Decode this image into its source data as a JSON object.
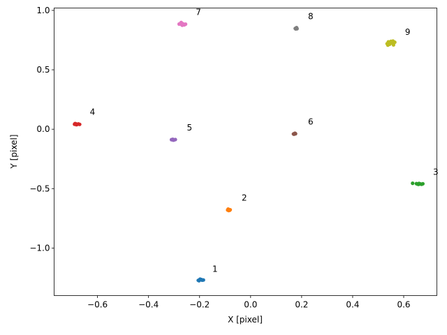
{
  "chart_data": {
    "type": "scatter",
    "title": "",
    "xlabel": "X [pixel]",
    "ylabel": "Y [pixel]",
    "xlim": [
      -0.77,
      0.73
    ],
    "ylim": [
      -1.4,
      1.02
    ],
    "grid": false,
    "xticks": [
      {
        "value": -0.6,
        "label": "−0.6"
      },
      {
        "value": -0.4,
        "label": "−0.4"
      },
      {
        "value": -0.2,
        "label": "−0.2"
      },
      {
        "value": 0.0,
        "label": "0.0"
      },
      {
        "value": 0.2,
        "label": "0.2"
      },
      {
        "value": 0.4,
        "label": "0.4"
      },
      {
        "value": 0.6,
        "label": "0.6"
      }
    ],
    "yticks": [
      {
        "value": -1.0,
        "label": "−1.0"
      },
      {
        "value": -0.5,
        "label": "−0.5"
      },
      {
        "value": 0.0,
        "label": "0.0"
      },
      {
        "value": 0.5,
        "label": "0.5"
      },
      {
        "value": 1.0,
        "label": "1.0"
      }
    ],
    "series": [
      {
        "color": "#1f77b4",
        "points": [
          [
            -0.205,
            -1.272
          ],
          [
            -0.2,
            -1.268
          ],
          [
            -0.195,
            -1.265
          ],
          [
            -0.19,
            -1.27
          ],
          [
            -0.198,
            -1.262
          ],
          [
            -0.202,
            -1.275
          ],
          [
            -0.192,
            -1.266
          ],
          [
            -0.185,
            -1.269
          ]
        ]
      },
      {
        "color": "#ff7f0e",
        "points": [
          [
            -0.09,
            -0.68
          ],
          [
            -0.085,
            -0.676
          ],
          [
            -0.082,
            -0.682
          ],
          [
            -0.088,
            -0.672
          ],
          [
            -0.08,
            -0.678
          ],
          [
            -0.086,
            -0.684
          ]
        ]
      },
      {
        "color": "#2ca02c",
        "points": [
          [
            0.635,
            -0.455
          ],
          [
            0.65,
            -0.458
          ],
          [
            0.655,
            -0.462
          ],
          [
            0.66,
            -0.456
          ],
          [
            0.665,
            -0.46
          ],
          [
            0.67,
            -0.463
          ],
          [
            0.675,
            -0.459
          ],
          [
            0.658,
            -0.464
          ]
        ]
      },
      {
        "color": "#d62728",
        "points": [
          [
            -0.69,
            0.042
          ],
          [
            -0.685,
            0.046
          ],
          [
            -0.68,
            0.04
          ],
          [
            -0.675,
            0.044
          ],
          [
            -0.67,
            0.041
          ],
          [
            -0.683,
            0.038
          ],
          [
            -0.688,
            0.047
          ]
        ]
      },
      {
        "color": "#9467bd",
        "points": [
          [
            -0.31,
            -0.088
          ],
          [
            -0.305,
            -0.085
          ],
          [
            -0.3,
            -0.09
          ],
          [
            -0.295,
            -0.087
          ],
          [
            -0.303,
            -0.092
          ]
        ]
      },
      {
        "color": "#8c564b",
        "points": [
          [
            0.168,
            -0.04
          ],
          [
            0.172,
            -0.036
          ],
          [
            0.176,
            -0.038
          ],
          [
            0.17,
            -0.042
          ],
          [
            0.174,
            -0.034
          ]
        ]
      },
      {
        "color": "#e377c2",
        "points": [
          [
            -0.28,
            0.885
          ],
          [
            -0.275,
            0.89
          ],
          [
            -0.27,
            0.88
          ],
          [
            -0.265,
            0.887
          ],
          [
            -0.26,
            0.878
          ],
          [
            -0.255,
            0.884
          ],
          [
            -0.272,
            0.898
          ],
          [
            -0.268,
            0.875
          ]
        ]
      },
      {
        "color": "#7f7f7f",
        "points": [
          [
            0.175,
            0.848
          ],
          [
            0.179,
            0.852
          ],
          [
            0.182,
            0.846
          ],
          [
            0.177,
            0.844
          ],
          [
            0.18,
            0.855
          ]
        ]
      },
      {
        "color": "#bcbd22",
        "points": [
          [
            0.535,
            0.72
          ],
          [
            0.54,
            0.735
          ],
          [
            0.545,
            0.715
          ],
          [
            0.55,
            0.74
          ],
          [
            0.555,
            0.725
          ],
          [
            0.56,
            0.71
          ],
          [
            0.565,
            0.732
          ],
          [
            0.538,
            0.708
          ],
          [
            0.548,
            0.728
          ],
          [
            0.558,
            0.742
          ]
        ]
      }
    ],
    "annotations": [
      {
        "text": "1",
        "x": -0.15,
        "y": -1.2
      },
      {
        "text": "2",
        "x": -0.035,
        "y": -0.6
      },
      {
        "text": "3",
        "x": 0.715,
        "y": -0.385
      },
      {
        "text": "4",
        "x": -0.63,
        "y": 0.12
      },
      {
        "text": "5",
        "x": -0.25,
        "y": -0.01
      },
      {
        "text": "6",
        "x": 0.225,
        "y": 0.04
      },
      {
        "text": "7",
        "x": -0.215,
        "y": 0.96
      },
      {
        "text": "8",
        "x": 0.225,
        "y": 0.925
      },
      {
        "text": "9",
        "x": 0.605,
        "y": 0.795
      }
    ]
  }
}
